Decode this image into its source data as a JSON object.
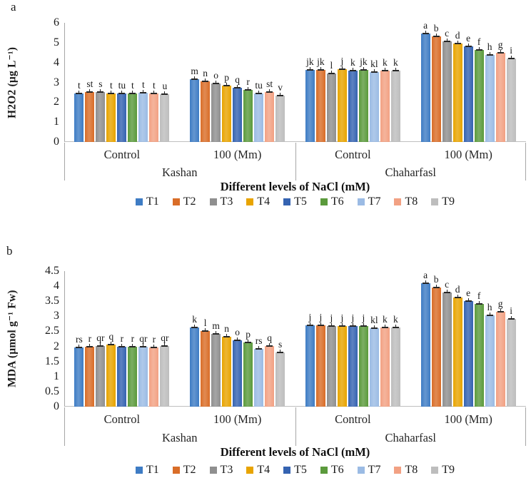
{
  "legend": {
    "items": [
      {
        "label": "T1",
        "color": "#3E7CC4"
      },
      {
        "label": "T2",
        "color": "#D96D28"
      },
      {
        "label": "T3",
        "color": "#8F8F8F"
      },
      {
        "label": "T4",
        "color": "#E8A400"
      },
      {
        "label": "T5",
        "color": "#3563B1"
      },
      {
        "label": "T6",
        "color": "#5B9A3C"
      },
      {
        "label": "T7",
        "color": "#9BBBE4"
      },
      {
        "label": "T8",
        "color": "#F2A183"
      },
      {
        "label": "T9",
        "color": "#BDBDBD"
      }
    ]
  },
  "chart_data": [
    {
      "type": "bar",
      "panel_label": "a",
      "ylabel": "H2O2 (µg L⁻¹)",
      "xlabel": "Different levels of NaCl (mM)",
      "ylim": [
        0,
        6
      ],
      "yticks": [
        "0",
        "1",
        "2",
        "3",
        "4",
        "5",
        "6"
      ],
      "grid": false,
      "legend_position": "bottom",
      "series_names": [
        "T1",
        "T2",
        "T3",
        "T4",
        "T5",
        "T6",
        "T7",
        "T8",
        "T9"
      ],
      "provinces": [
        "Kashan",
        "Chaharfasl"
      ],
      "groups": [
        {
          "label": "Control",
          "province": "Kashan",
          "values": [
            2.45,
            2.5,
            2.53,
            2.45,
            2.43,
            2.46,
            2.47,
            2.46,
            2.4
          ],
          "letters": [
            "t",
            "st",
            "s",
            "t",
            "tu",
            "t",
            "t",
            "t",
            "u"
          ]
        },
        {
          "label": "100 (Mm)",
          "province": "Kashan",
          "values": [
            3.15,
            3.05,
            2.95,
            2.85,
            2.72,
            2.62,
            2.45,
            2.5,
            2.35
          ],
          "letters": [
            "m",
            "n",
            "o",
            "p",
            "q",
            "r",
            "tu",
            "st",
            "v"
          ]
        },
        {
          "label": "Control",
          "province": "Chaharfasl",
          "values": [
            3.62,
            3.63,
            3.45,
            3.65,
            3.58,
            3.62,
            3.52,
            3.58,
            3.58
          ],
          "letters": [
            "jk",
            "jk",
            "l",
            "j",
            "k",
            "jk",
            "kl",
            "k",
            "k"
          ]
        },
        {
          "label": "100 (Mm)",
          "province": "Chaharfasl",
          "values": [
            5.45,
            5.3,
            5.08,
            4.95,
            4.8,
            4.63,
            4.38,
            4.5,
            4.22
          ],
          "letters": [
            "a",
            "b",
            "c",
            "d",
            "e",
            "f",
            "h",
            "g",
            "i"
          ]
        }
      ]
    },
    {
      "type": "bar",
      "panel_label": "b",
      "ylabel": "MDA (µmol g⁻¹ Fw)",
      "xlabel": "Different levels of  NaCl (mM)",
      "ylim": [
        0,
        4.5
      ],
      "yticks": [
        "0",
        "0.5",
        "1",
        "1.5",
        "2",
        "2.5",
        "3",
        "3.5",
        "4",
        "4.5"
      ],
      "grid": false,
      "legend_position": "bottom",
      "series_names": [
        "T1",
        "T2",
        "T3",
        "T4",
        "T5",
        "T6",
        "T7",
        "T8",
        "T9"
      ],
      "provinces": [
        "Kashan",
        "Chaharfasl"
      ],
      "groups": [
        {
          "label": "Control",
          "province": "Kashan",
          "values": [
            1.97,
            2.0,
            2.02,
            2.06,
            2.0,
            1.99,
            1.98,
            1.96,
            2.01
          ],
          "letters": [
            "rs",
            "r",
            "qr",
            "q",
            "r",
            "r",
            "qr",
            "r",
            "qr"
          ]
        },
        {
          "label": "100 (Mm)",
          "province": "Kashan",
          "values": [
            2.63,
            2.52,
            2.42,
            2.31,
            2.2,
            2.12,
            1.91,
            2.02,
            1.8
          ],
          "letters": [
            "k",
            "l",
            "m",
            "n",
            "o",
            "p",
            "rs",
            "q",
            "s"
          ]
        },
        {
          "label": "Control",
          "province": "Chaharfasl",
          "values": [
            2.7,
            2.7,
            2.68,
            2.68,
            2.68,
            2.67,
            2.6,
            2.64,
            2.64
          ],
          "letters": [
            "j",
            "j",
            "j",
            "j",
            "j",
            "j",
            "kl",
            "k",
            "k"
          ]
        },
        {
          "label": "100 (Mm)",
          "province": "Chaharfasl",
          "values": [
            4.1,
            3.95,
            3.78,
            3.62,
            3.5,
            3.4,
            3.03,
            3.15,
            2.92
          ],
          "letters": [
            "a",
            "b",
            "c",
            "d",
            "e",
            "f",
            "h",
            "g",
            "i"
          ]
        }
      ]
    }
  ]
}
